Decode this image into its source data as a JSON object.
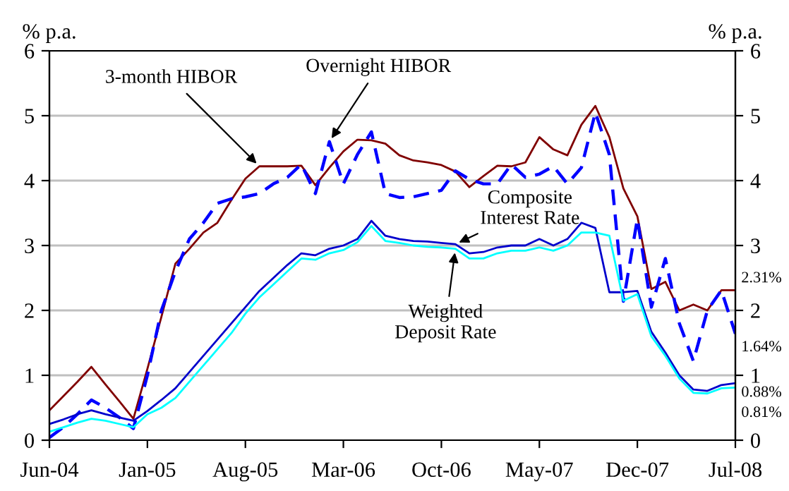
{
  "chart_data": {
    "type": "line",
    "ylabel": "% p.a.",
    "y2label": "% p.a.",
    "x": [
      "2004-06",
      "2004-07",
      "2004-08",
      "2004-09",
      "2004-10",
      "2004-11",
      "2004-12",
      "2005-01",
      "2005-02",
      "2005-03",
      "2005-04",
      "2005-05",
      "2005-06",
      "2005-07",
      "2005-08",
      "2005-09",
      "2005-10",
      "2005-11",
      "2005-12",
      "2006-01",
      "2006-02",
      "2006-03",
      "2006-04",
      "2006-05",
      "2006-06",
      "2006-07",
      "2006-08",
      "2006-09",
      "2006-10",
      "2006-11",
      "2006-12",
      "2007-01",
      "2007-02",
      "2007-03",
      "2007-04",
      "2007-05",
      "2007-06",
      "2007-07",
      "2007-08",
      "2007-09",
      "2007-10",
      "2007-11",
      "2007-12",
      "2008-01",
      "2008-02",
      "2008-03",
      "2008-04",
      "2008-05",
      "2008-06",
      "2008-07"
    ],
    "xlim": [
      "2004-06",
      "2008-07"
    ],
    "xticks": [
      {
        "value": "2004-06",
        "label": "Jun-04"
      },
      {
        "value": "2005-01",
        "label": "Jan-05"
      },
      {
        "value": "2005-08",
        "label": "Aug-05"
      },
      {
        "value": "2006-03",
        "label": "Mar-06"
      },
      {
        "value": "2006-10",
        "label": "Oct-06"
      },
      {
        "value": "2007-05",
        "label": "May-07"
      },
      {
        "value": "2007-12",
        "label": "Dec-07"
      },
      {
        "value": "2008-07",
        "label": "Jul-08"
      }
    ],
    "ylim": [
      0,
      6
    ],
    "yticks": [
      0,
      1,
      2,
      3,
      4,
      5,
      6
    ],
    "y2lim": [
      0,
      6
    ],
    "y2ticks": [
      0,
      1,
      2,
      3,
      4,
      5,
      6
    ],
    "grid": "y",
    "legend": false,
    "series": [
      {
        "name": "3-month HIBOR",
        "color": "#800000",
        "line_style": "solid",
        "values": [
          0.46,
          0.68,
          0.9,
          1.13,
          0.86,
          0.6,
          0.33,
          1.1,
          1.9,
          2.72,
          2.95,
          3.2,
          3.35,
          3.7,
          4.03,
          4.22,
          4.22,
          4.22,
          4.23,
          3.93,
          4.2,
          4.45,
          4.63,
          4.62,
          4.57,
          4.39,
          4.31,
          4.28,
          4.24,
          4.14,
          3.9,
          4.07,
          4.23,
          4.22,
          4.28,
          4.67,
          4.48,
          4.39,
          4.86,
          5.15,
          4.67,
          3.88,
          3.45,
          2.33,
          2.44,
          2.0,
          2.09,
          2.0,
          2.31,
          2.31
        ]
      },
      {
        "name": "Overnight HIBOR",
        "color": "#0000ff",
        "line_style": "dashed",
        "values": [
          0.04,
          0.2,
          0.4,
          0.62,
          0.5,
          0.35,
          0.18,
          1.0,
          2.0,
          2.6,
          3.1,
          3.35,
          3.65,
          3.72,
          3.75,
          3.8,
          3.95,
          4.05,
          4.25,
          3.8,
          4.6,
          3.95,
          4.4,
          4.75,
          3.8,
          3.74,
          3.75,
          3.8,
          3.85,
          4.15,
          4.02,
          3.95,
          3.95,
          4.25,
          4.05,
          4.1,
          4.22,
          3.95,
          4.2,
          5.05,
          4.4,
          2.14,
          3.41,
          2.05,
          2.8,
          1.8,
          1.22,
          2.0,
          2.31,
          1.64
        ]
      },
      {
        "name": "Composite\nInterest Rate",
        "color": "#0000cc",
        "line_style": "solid",
        "values": [
          0.25,
          0.32,
          0.4,
          0.46,
          0.4,
          0.35,
          0.3,
          0.45,
          0.62,
          0.8,
          1.05,
          1.3,
          1.55,
          1.8,
          2.05,
          2.3,
          2.5,
          2.7,
          2.88,
          2.85,
          2.95,
          3.0,
          3.1,
          3.38,
          3.15,
          3.1,
          3.07,
          3.06,
          3.04,
          3.02,
          2.88,
          2.9,
          2.97,
          3.0,
          3.0,
          3.1,
          3.0,
          3.1,
          3.35,
          3.27,
          2.28,
          2.28,
          2.3,
          1.67,
          1.35,
          1.0,
          0.78,
          0.76,
          0.85,
          0.88
        ]
      },
      {
        "name": "Weighted\nDeposit Rate",
        "color": "#00ffff",
        "line_style": "solid",
        "values": [
          0.13,
          0.2,
          0.27,
          0.33,
          0.3,
          0.25,
          0.2,
          0.4,
          0.5,
          0.65,
          0.9,
          1.15,
          1.4,
          1.65,
          1.95,
          2.2,
          2.4,
          2.6,
          2.8,
          2.78,
          2.88,
          2.93,
          3.05,
          3.3,
          3.07,
          3.04,
          3.0,
          2.98,
          2.97,
          2.95,
          2.8,
          2.8,
          2.88,
          2.92,
          2.92,
          2.97,
          2.92,
          3.0,
          3.2,
          3.2,
          3.15,
          2.15,
          2.25,
          1.6,
          1.3,
          0.95,
          0.73,
          0.72,
          0.8,
          0.81
        ]
      }
    ],
    "annotations": [
      {
        "text": "2.31%",
        "x": "2008-07",
        "y": 2.31
      },
      {
        "text": "1.64%",
        "x": "2008-07",
        "y": 1.64
      },
      {
        "text": "0.88%",
        "x": "2008-07",
        "y": 0.88
      },
      {
        "text": "0.81%",
        "x": "2008-07",
        "y": 0.81
      }
    ]
  }
}
